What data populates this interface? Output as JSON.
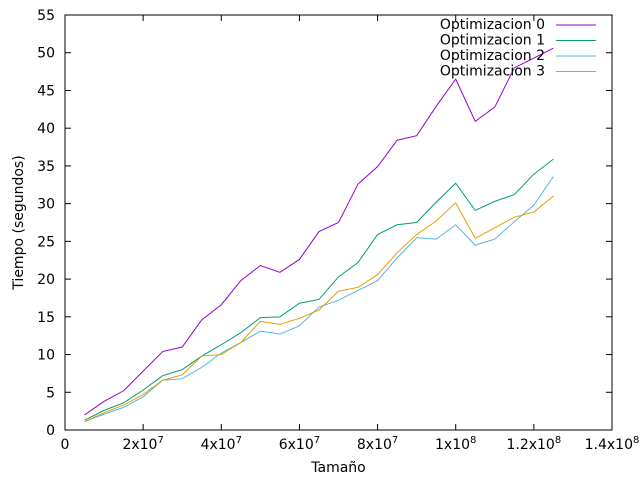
{
  "chart_data": {
    "type": "line",
    "title": "",
    "xlabel": "Tamaño",
    "ylabel": "Tiempo (segundos)",
    "xlim": [
      0,
      140000000
    ],
    "ylim": [
      0,
      55
    ],
    "x_ticks": [
      {
        "value": 0,
        "label": "0",
        "exp": ""
      },
      {
        "value": 20000000,
        "label": "2x10",
        "exp": "7"
      },
      {
        "value": 40000000,
        "label": "4x10",
        "exp": "7"
      },
      {
        "value": 60000000,
        "label": "6x10",
        "exp": "7"
      },
      {
        "value": 80000000,
        "label": "8x10",
        "exp": "7"
      },
      {
        "value": 100000000,
        "label": "1x10",
        "exp": "8"
      },
      {
        "value": 120000000,
        "label": "1.2x10",
        "exp": "8"
      },
      {
        "value": 140000000,
        "label": "1.4x10",
        "exp": "8"
      }
    ],
    "y_ticks": [
      0,
      5,
      10,
      15,
      20,
      25,
      30,
      35,
      40,
      45,
      50,
      55
    ],
    "legend_position": "top-right",
    "x": [
      5000000,
      10000000,
      15000000,
      20000000,
      25000000,
      30000000,
      35000000,
      40000000,
      45000000,
      50000000,
      55000000,
      60000000,
      65000000,
      70000000,
      75000000,
      80000000,
      85000000,
      90000000,
      95000000,
      100000000,
      105000000,
      110000000,
      115000000,
      120000000,
      125000000
    ],
    "series": [
      {
        "name": "Optimizacion 0",
        "color": "#9400d3",
        "values": [
          2.0,
          3.8,
          5.2,
          7.8,
          10.4,
          11.0,
          14.6,
          16.6,
          19.8,
          21.8,
          20.9,
          22.6,
          26.3,
          27.5,
          32.6,
          34.9,
          38.4,
          39.0,
          42.9,
          46.5,
          40.9,
          42.8,
          48.0,
          49.3,
          50.6
        ]
      },
      {
        "name": "Optimizacion 1",
        "color": "#009e73",
        "values": [
          1.3,
          2.6,
          3.6,
          5.3,
          7.2,
          8.0,
          9.8,
          11.3,
          12.9,
          14.9,
          15.0,
          16.8,
          17.3,
          20.3,
          22.2,
          25.9,
          27.2,
          27.5,
          30.2,
          32.7,
          29.1,
          30.3,
          31.2,
          33.9,
          35.9
        ]
      },
      {
        "name": "Optimizacion 2",
        "color": "#56b4e9",
        "values": [
          1.1,
          2.1,
          3.0,
          4.4,
          6.6,
          6.8,
          8.3,
          10.2,
          11.6,
          13.1,
          12.7,
          13.8,
          16.3,
          17.2,
          18.5,
          19.8,
          22.8,
          25.5,
          25.3,
          27.2,
          24.5,
          25.3,
          27.6,
          29.8,
          33.6
        ]
      },
      {
        "name": "Optimizacion 3",
        "color": "#e69f00",
        "values": [
          1.1,
          2.3,
          3.3,
          4.7,
          6.6,
          7.3,
          9.8,
          10.0,
          11.6,
          14.4,
          14.0,
          14.8,
          15.9,
          18.4,
          18.9,
          20.6,
          23.5,
          25.9,
          27.7,
          30.1,
          25.4,
          26.8,
          28.2,
          28.9,
          31.0
        ]
      }
    ]
  }
}
